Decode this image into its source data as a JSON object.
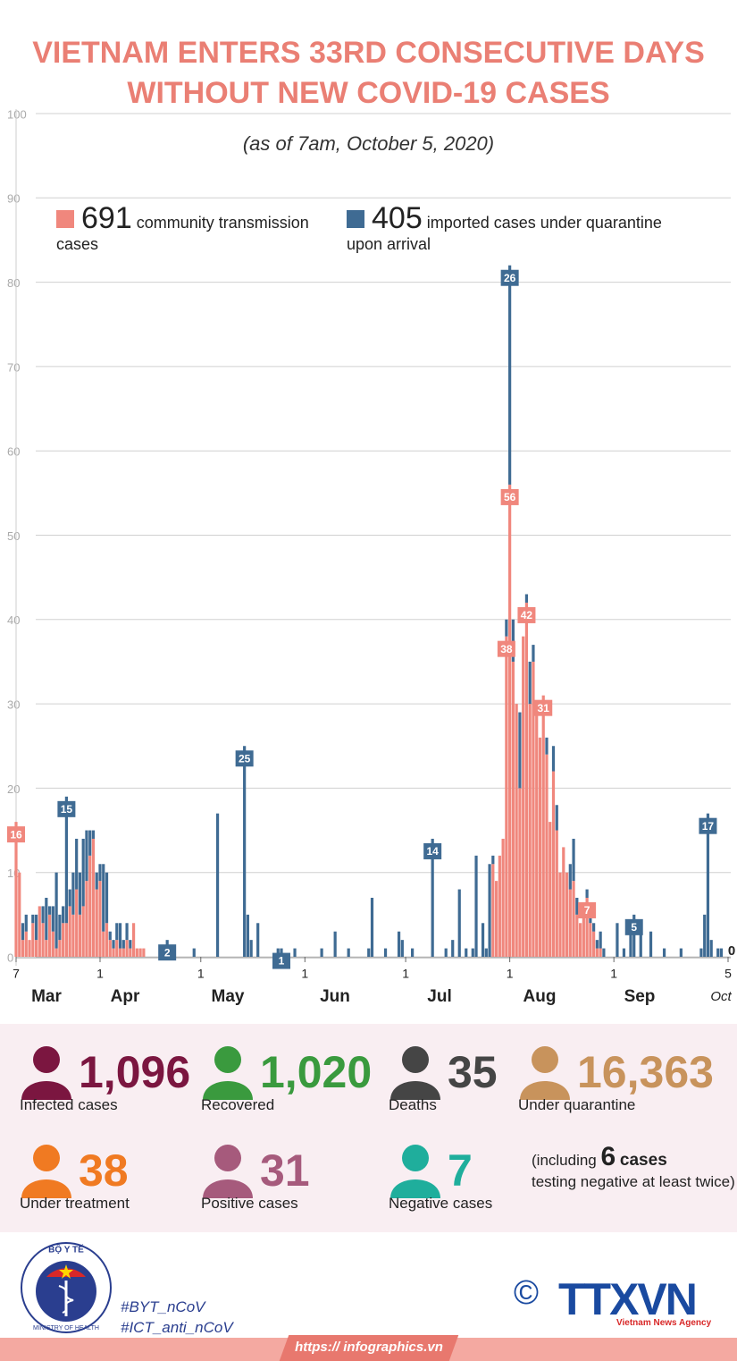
{
  "header": {
    "title_line1": "VIETNAM ENTERS 33RD CONSECUTIVE DAYS",
    "title_line2": "WITHOUT NEW COVID-19 CASES",
    "subtitle": "(as of 7am, October 5, 2020)"
  },
  "chart_data": {
    "type": "bar",
    "stacked": true,
    "x": [
      0,
      1,
      2,
      3,
      4,
      5,
      6,
      7,
      8,
      9,
      10,
      11,
      12,
      13,
      14,
      15,
      16,
      17,
      18,
      19,
      20,
      21,
      22,
      23,
      24,
      25,
      26,
      27,
      28,
      29,
      30,
      31,
      32,
      33,
      34,
      35,
      36,
      37,
      38,
      45,
      53,
      60,
      68,
      69,
      70,
      72,
      78,
      79,
      83,
      91,
      95,
      99,
      105,
      106,
      110,
      114,
      115,
      118,
      124,
      128,
      130,
      132,
      134,
      136,
      137,
      139,
      140,
      141,
      142,
      143,
      144,
      145,
      146,
      147,
      148,
      149,
      150,
      151,
      152,
      153,
      154,
      155,
      156,
      157,
      158,
      159,
      160,
      161,
      162,
      163,
      164,
      165,
      166,
      167,
      168,
      169,
      170,
      171,
      172,
      173,
      174,
      175,
      179,
      181,
      183,
      184,
      186,
      189,
      193,
      198,
      204,
      205,
      206,
      207,
      209,
      210,
      212
    ],
    "xlim": [
      0,
      212
    ],
    "xticks": [
      {
        "value": 0,
        "label": "7"
      },
      {
        "value": 25,
        "label": "1"
      },
      {
        "value": 55,
        "label": "1"
      },
      {
        "value": 86,
        "label": "1"
      },
      {
        "value": 116,
        "label": "1"
      },
      {
        "value": 147,
        "label": "1"
      },
      {
        "value": 178,
        "label": "1"
      },
      {
        "value": 212,
        "label": "5"
      }
    ],
    "month_labels": [
      "Mar",
      "Apr",
      "May",
      "Jun",
      "Jul",
      "Aug",
      "Sep",
      "Oct"
    ],
    "ylim": [
      0,
      100
    ],
    "yticks": [
      0,
      10,
      20,
      30,
      40,
      50,
      60,
      70,
      80,
      90,
      100
    ],
    "grid": true,
    "series": [
      {
        "name": "community transmission cases",
        "total": 691,
        "color": "#f0877d",
        "values": [
          16,
          10,
          2,
          3,
          2,
          4,
          2,
          6,
          4,
          2,
          5,
          3,
          1,
          2,
          4,
          4,
          6,
          5,
          8,
          5,
          6,
          9,
          12,
          14,
          8,
          9,
          3,
          4,
          2,
          1,
          2,
          1,
          1,
          2,
          1,
          4,
          1,
          1,
          1,
          0,
          0,
          0,
          0,
          0,
          0,
          0,
          0,
          0,
          0,
          0,
          0,
          0,
          0,
          0,
          0,
          0,
          0,
          0,
          0,
          0,
          0,
          0,
          0,
          0,
          0,
          0,
          0,
          0,
          11,
          9,
          12,
          14,
          38,
          56,
          35,
          30,
          20,
          38,
          42,
          30,
          35,
          30,
          26,
          31,
          24,
          16,
          22,
          15,
          10,
          13,
          10,
          8,
          9,
          5,
          4,
          5,
          7,
          4,
          3,
          1,
          1,
          0,
          0,
          0,
          0,
          0,
          0,
          0,
          0,
          0,
          0,
          0,
          0,
          0,
          0,
          0,
          0
        ]
      },
      {
        "name": "imported cases under quarantine upon arrival",
        "total": 405,
        "color": "#3f6b93",
        "values": [
          0,
          0,
          2,
          2,
          0,
          1,
          3,
          0,
          2,
          5,
          1,
          3,
          9,
          3,
          2,
          15,
          2,
          5,
          6,
          5,
          8,
          6,
          3,
          1,
          2,
          2,
          8,
          6,
          1,
          1,
          2,
          3,
          1,
          2,
          1,
          0,
          0,
          0,
          0,
          2,
          1,
          17,
          25,
          5,
          2,
          4,
          1,
          1,
          1,
          1,
          3,
          1,
          1,
          7,
          1,
          3,
          2,
          1,
          14,
          1,
          2,
          8,
          1,
          1,
          12,
          4,
          1,
          11,
          1,
          0,
          0,
          0,
          2,
          26,
          5,
          0,
          9,
          0,
          1,
          5,
          2,
          0,
          0,
          0,
          2,
          0,
          3,
          3,
          0,
          0,
          0,
          3,
          5,
          2,
          0,
          1,
          1,
          1,
          1,
          1,
          2,
          1,
          4,
          1,
          3,
          5,
          3,
          3,
          1,
          1,
          1,
          5,
          17,
          2,
          1,
          1,
          0
        ]
      }
    ]
  },
  "stats": [
    {
      "value": "1,096",
      "label": "Infected cases",
      "color": "#7b1640"
    },
    {
      "value": "1,020",
      "label": "Recovered",
      "color": "#3a9a3e"
    },
    {
      "value": "35",
      "label": "Deaths",
      "color": "#454545"
    },
    {
      "value": "16,363",
      "label": "Under quarantine",
      "color": "#c8935c"
    },
    {
      "value": "38",
      "label": "Under treatment",
      "color": "#f07a22"
    },
    {
      "value": "31",
      "label": "Positive cases",
      "color": "#a65a7c"
    },
    {
      "value": "7",
      "label": "Negative cases",
      "color": "#1fae9c"
    }
  ],
  "note": {
    "prefix": "(including",
    "number": "6",
    "unit": "cases",
    "suffix": "testing negative at least twice)"
  },
  "footer": {
    "logo_top": "BỘ Y TẾ",
    "logo_bottom": "MINISTRY OF HEALTH",
    "hashtag1": "#BYT_nCoV",
    "hashtag2": "#ICT_anti_nCoV",
    "copyright": "©",
    "brand": "TTXVN",
    "brand_sub": "Vietnam News Agency",
    "url": "https:// infographics.vn"
  }
}
